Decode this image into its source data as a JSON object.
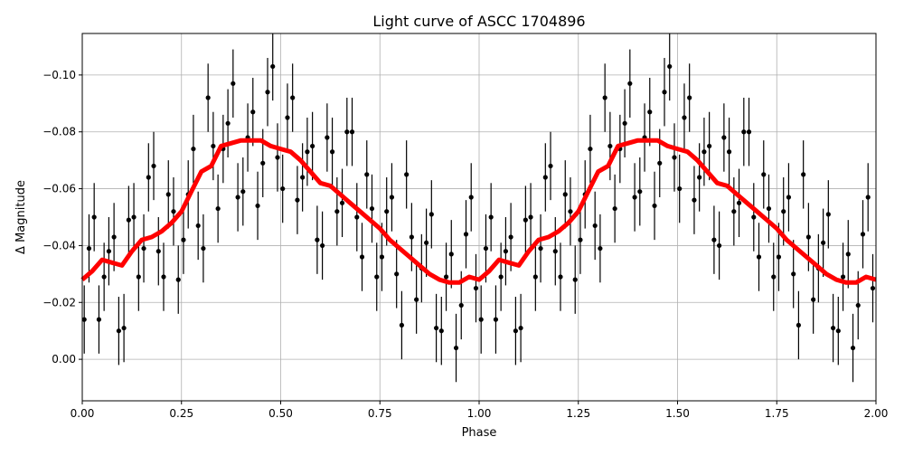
{
  "chart_data": {
    "type": "scatter",
    "title": "Light curve of ASCC 1704896",
    "xlabel": "Phase",
    "ylabel": "Δ Magnitude",
    "xlim": [
      0,
      2.0
    ],
    "ylim": [
      0.0146,
      -0.1146
    ],
    "y_inverted": true,
    "grid": true,
    "folded_cycles": 2,
    "xticks": [
      0,
      0.25,
      0.5,
      0.75,
      1.0,
      1.25,
      1.5,
      1.75,
      2.0
    ],
    "xtick_labels": [
      "0.00",
      "0.25",
      "0.50",
      "0.75",
      "1.00",
      "1.25",
      "1.50",
      "1.75",
      "2.00"
    ],
    "yticks": [
      -0.1,
      -0.08,
      -0.06,
      -0.04,
      -0.02,
      0.0
    ],
    "ytick_labels": [
      "−0.10",
      "−0.08",
      "−0.06",
      "−0.04",
      "−0.02",
      "0.00"
    ],
    "colors": {
      "points": "#000000",
      "model": "#ff0000",
      "grid": "#b0b0b0"
    },
    "typical_error": 0.012,
    "points": [
      [
        0.005,
        -0.014
      ],
      [
        0.017,
        -0.039
      ],
      [
        0.03,
        -0.05
      ],
      [
        0.042,
        -0.014
      ],
      [
        0.055,
        -0.029
      ],
      [
        0.067,
        -0.038
      ],
      [
        0.08,
        -0.043
      ],
      [
        0.092,
        -0.01
      ],
      [
        0.105,
        -0.011
      ],
      [
        0.117,
        -0.049
      ],
      [
        0.13,
        -0.05
      ],
      [
        0.142,
        -0.029
      ],
      [
        0.155,
        -0.039
      ],
      [
        0.167,
        -0.064
      ],
      [
        0.18,
        -0.068
      ],
      [
        0.192,
        -0.038
      ],
      [
        0.205,
        -0.029
      ],
      [
        0.217,
        -0.058
      ],
      [
        0.23,
        -0.052
      ],
      [
        0.242,
        -0.028
      ],
      [
        0.255,
        -0.042
      ],
      [
        0.267,
        -0.058
      ],
      [
        0.28,
        -0.074
      ],
      [
        0.292,
        -0.047
      ],
      [
        0.305,
        -0.039
      ],
      [
        0.317,
        -0.092
      ],
      [
        0.33,
        -0.075
      ],
      [
        0.342,
        -0.053
      ],
      [
        0.355,
        -0.074
      ],
      [
        0.367,
        -0.083
      ],
      [
        0.38,
        -0.097
      ],
      [
        0.392,
        -0.057
      ],
      [
        0.405,
        -0.059
      ],
      [
        0.417,
        -0.078
      ],
      [
        0.43,
        -0.087
      ],
      [
        0.442,
        -0.054
      ],
      [
        0.455,
        -0.069
      ],
      [
        0.467,
        -0.094
      ],
      [
        0.48,
        -0.103
      ],
      [
        0.492,
        -0.071
      ],
      [
        0.505,
        -0.06
      ],
      [
        0.517,
        -0.085
      ],
      [
        0.53,
        -0.092
      ],
      [
        0.542,
        -0.056
      ],
      [
        0.555,
        -0.064
      ],
      [
        0.567,
        -0.073
      ],
      [
        0.58,
        -0.075
      ],
      [
        0.592,
        -0.042
      ],
      [
        0.605,
        -0.04
      ],
      [
        0.617,
        -0.078
      ],
      [
        0.63,
        -0.073
      ],
      [
        0.642,
        -0.052
      ],
      [
        0.655,
        -0.055
      ],
      [
        0.667,
        -0.08
      ],
      [
        0.68,
        -0.08
      ],
      [
        0.692,
        -0.05
      ],
      [
        0.705,
        -0.036
      ],
      [
        0.717,
        -0.065
      ],
      [
        0.73,
        -0.053
      ],
      [
        0.742,
        -0.029
      ],
      [
        0.755,
        -0.036
      ],
      [
        0.767,
        -0.052
      ],
      [
        0.78,
        -0.057
      ],
      [
        0.792,
        -0.03
      ],
      [
        0.805,
        -0.012
      ],
      [
        0.817,
        -0.065
      ],
      [
        0.83,
        -0.043
      ],
      [
        0.842,
        -0.021
      ],
      [
        0.855,
        -0.032
      ],
      [
        0.867,
        -0.041
      ],
      [
        0.88,
        -0.051
      ],
      [
        0.892,
        -0.011
      ],
      [
        0.905,
        -0.01
      ],
      [
        0.917,
        -0.029
      ],
      [
        0.93,
        -0.037
      ],
      [
        0.942,
        -0.004
      ],
      [
        0.955,
        -0.019
      ],
      [
        0.967,
        -0.044
      ],
      [
        0.98,
        -0.057
      ],
      [
        0.992,
        -0.025
      ]
    ],
    "model": [
      [
        0.0,
        -0.028
      ],
      [
        0.025,
        -0.031
      ],
      [
        0.05,
        -0.035
      ],
      [
        0.075,
        -0.034
      ],
      [
        0.1,
        -0.033
      ],
      [
        0.125,
        -0.038
      ],
      [
        0.15,
        -0.042
      ],
      [
        0.175,
        -0.043
      ],
      [
        0.2,
        -0.045
      ],
      [
        0.225,
        -0.048
      ],
      [
        0.25,
        -0.052
      ],
      [
        0.275,
        -0.059
      ],
      [
        0.3,
        -0.066
      ],
      [
        0.325,
        -0.068
      ],
      [
        0.35,
        -0.075
      ],
      [
        0.375,
        -0.076
      ],
      [
        0.4,
        -0.077
      ],
      [
        0.425,
        -0.077
      ],
      [
        0.45,
        -0.077
      ],
      [
        0.475,
        -0.075
      ],
      [
        0.5,
        -0.074
      ],
      [
        0.525,
        -0.073
      ],
      [
        0.55,
        -0.07
      ],
      [
        0.575,
        -0.066
      ],
      [
        0.6,
        -0.062
      ],
      [
        0.625,
        -0.061
      ],
      [
        0.65,
        -0.058
      ],
      [
        0.675,
        -0.055
      ],
      [
        0.7,
        -0.052
      ],
      [
        0.725,
        -0.049
      ],
      [
        0.75,
        -0.046
      ],
      [
        0.775,
        -0.042
      ],
      [
        0.8,
        -0.039
      ],
      [
        0.825,
        -0.036
      ],
      [
        0.85,
        -0.033
      ],
      [
        0.875,
        -0.03
      ],
      [
        0.9,
        -0.028
      ],
      [
        0.925,
        -0.027
      ],
      [
        0.95,
        -0.027
      ],
      [
        0.975,
        -0.029
      ],
      [
        1.0,
        -0.028
      ]
    ]
  }
}
